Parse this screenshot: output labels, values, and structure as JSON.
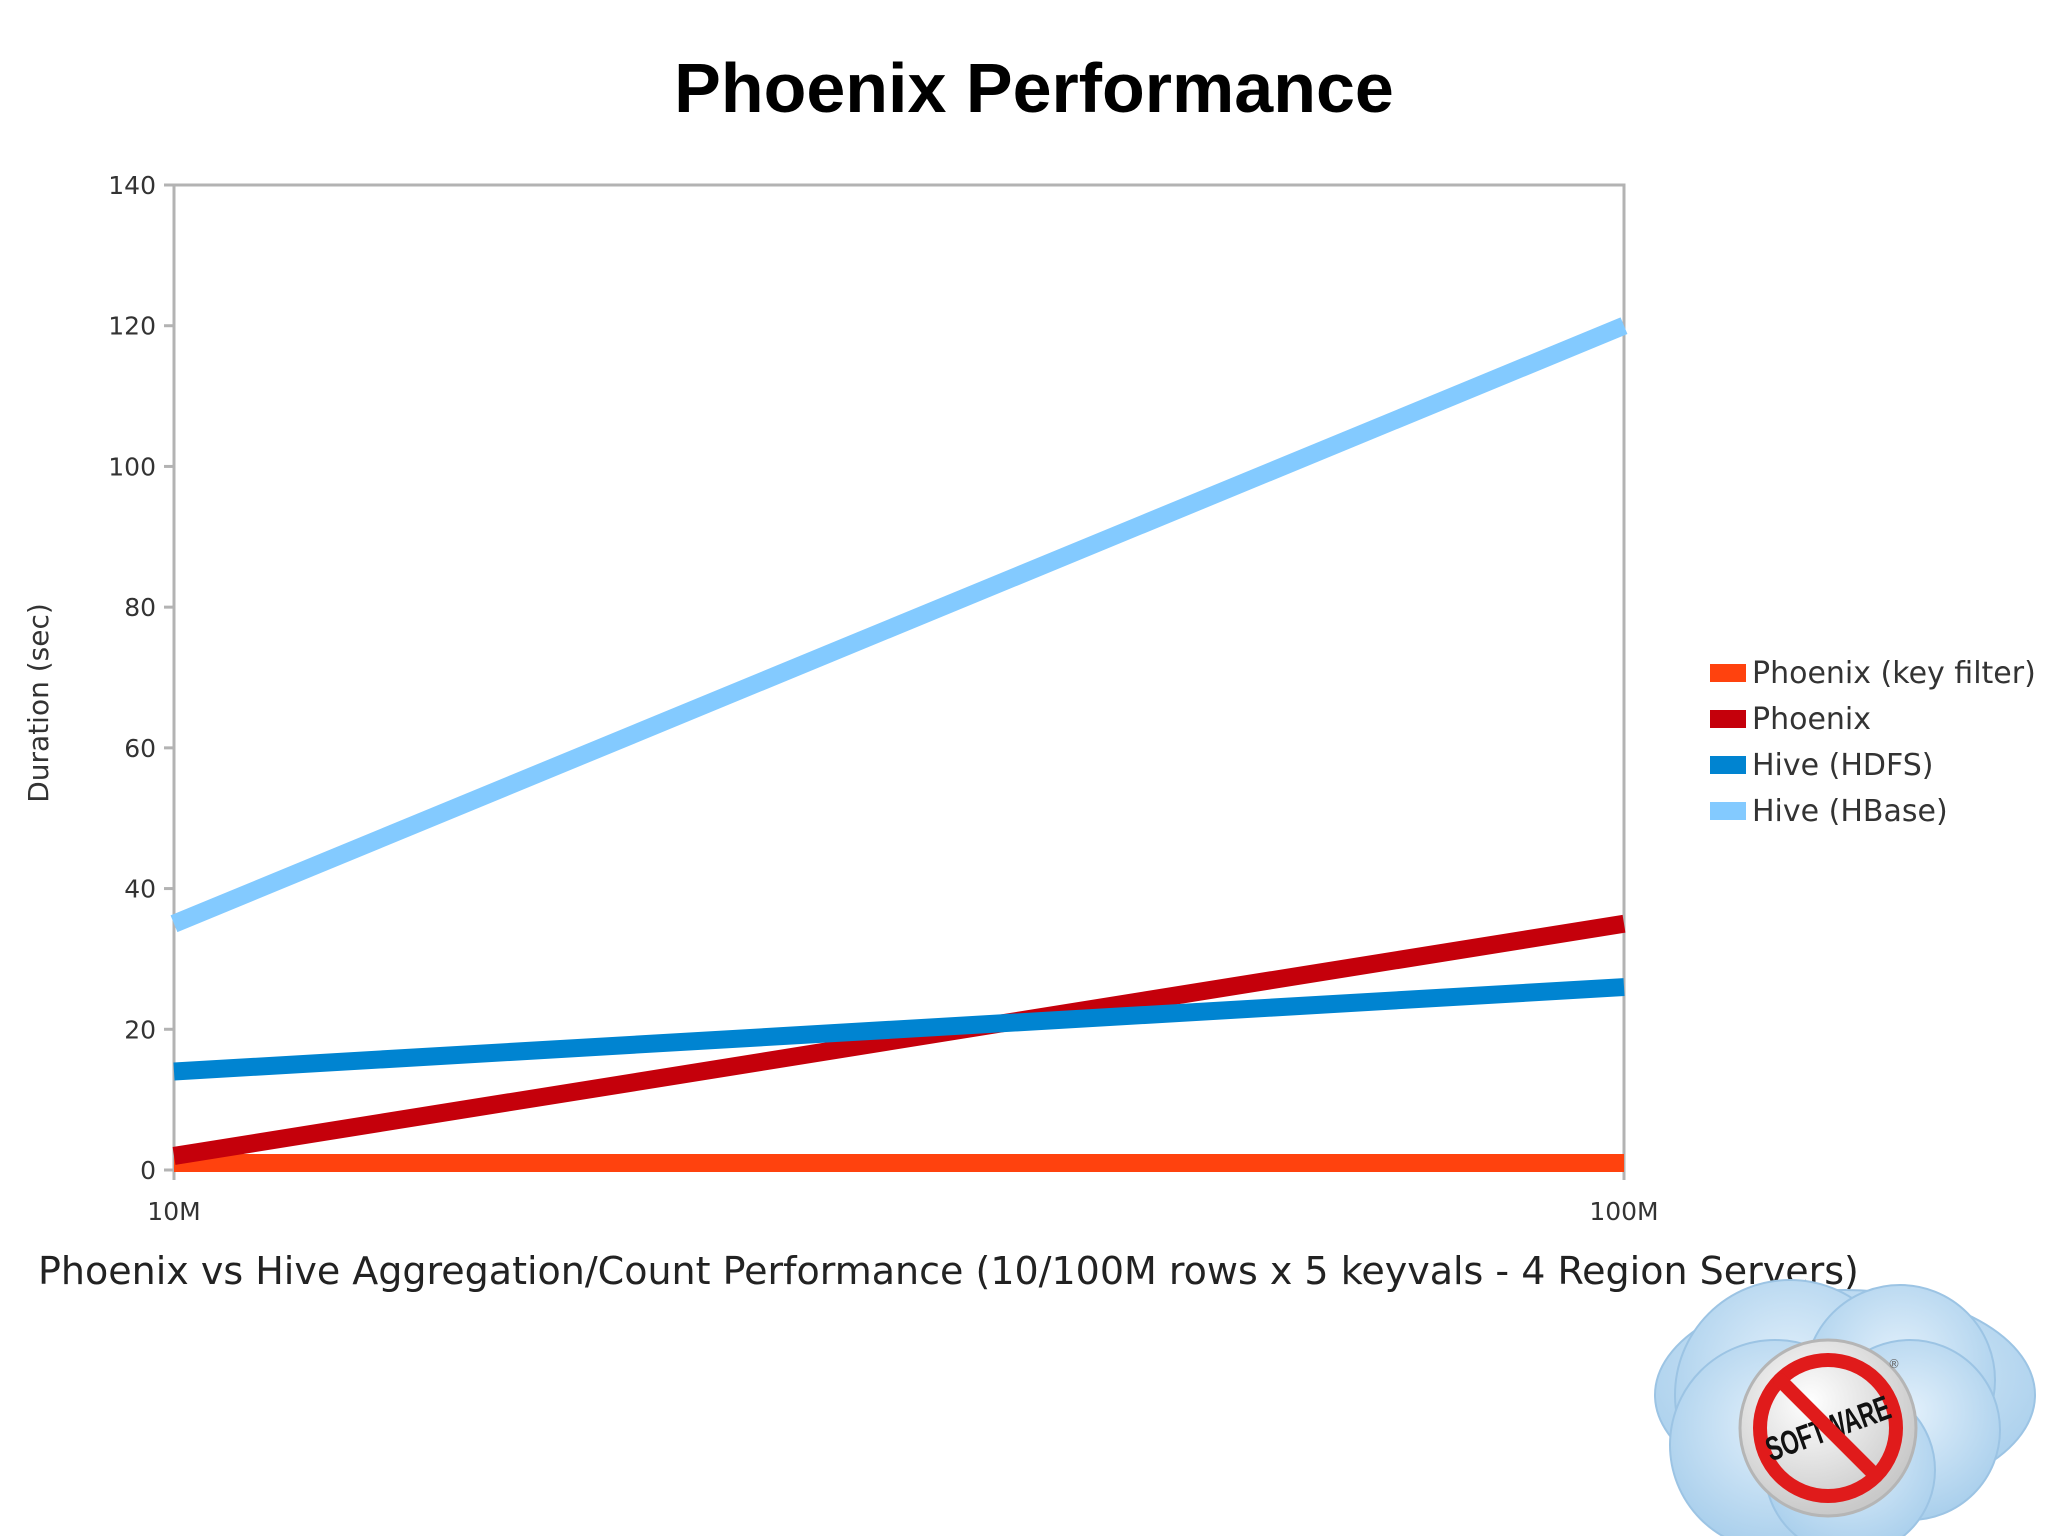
{
  "slide": {
    "title": "Phoenix Performance",
    "caption": "Phoenix vs Hive Aggregation/Count Performance (10/100M rows x 5 keyvals - 4 Region Servers)"
  },
  "chart_data": {
    "type": "line",
    "title": "",
    "xlabel": "",
    "ylabel": "Duration (sec)",
    "categories": [
      "10M",
      "100M"
    ],
    "ylim": [
      0,
      140
    ],
    "yticks": [
      0,
      20,
      40,
      60,
      80,
      100,
      120,
      140
    ],
    "grid": true,
    "legend_position": "right",
    "series": [
      {
        "name": "Phoenix (key filter)",
        "values": [
          1,
          1
        ],
        "color": "#ff420e"
      },
      {
        "name": "Phoenix",
        "values": [
          2,
          35
        ],
        "color": "#c5000b"
      },
      {
        "name": "Hive (HDFS)",
        "values": [
          14,
          26
        ],
        "color": "#0084d1"
      },
      {
        "name": "Hive (HBase)",
        "values": [
          35,
          120
        ],
        "color": "#83caff"
      }
    ]
  },
  "logo": {
    "text": "SOFTWARE",
    "icon": "no-software-cloud-logo"
  }
}
